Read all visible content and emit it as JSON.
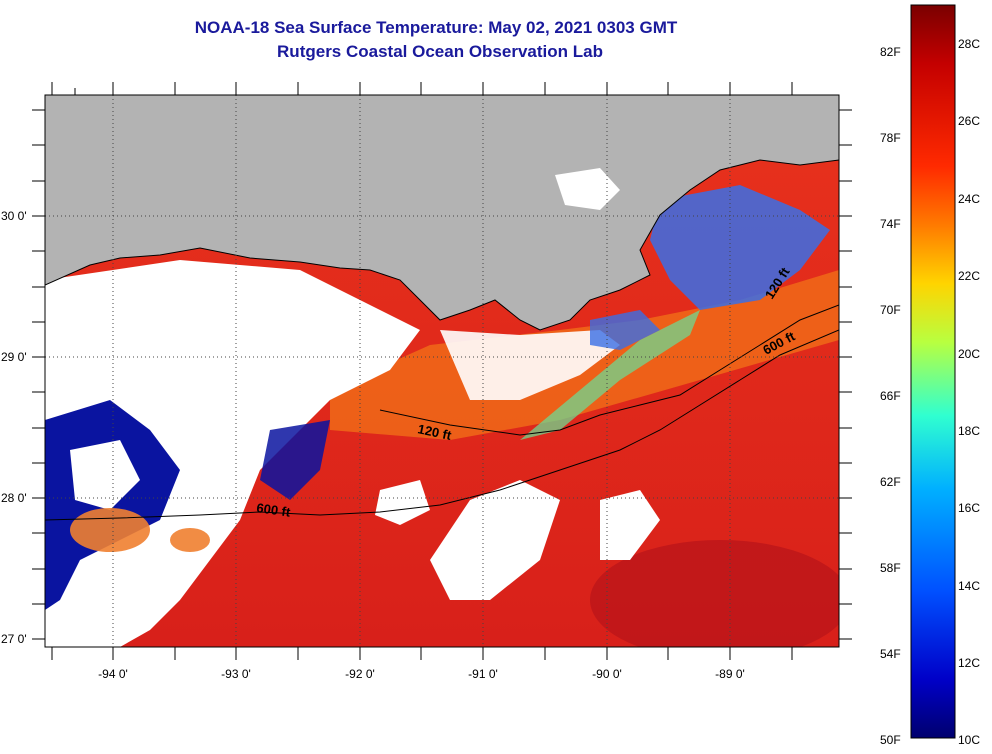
{
  "title": "NOAA-18 Sea Surface Temperature:  May 02, 2021 0303 GMT",
  "subtitle": "Rutgers Coastal Ocean Observation Lab",
  "map": {
    "lon_labels": [
      "-94 0'",
      "-93 0'",
      "-92 0'",
      "-91 0'",
      "-90 0'",
      "-89 0'"
    ],
    "lat_labels": [
      "30 0'",
      "29 0'",
      "28 0'",
      "27 0'"
    ],
    "contour_labels": [
      "120 ft",
      "600 ft",
      "120 ft",
      "600 ft"
    ],
    "colors": {
      "land": "#b3b3b3",
      "cloud": "#ffffff",
      "warm_water": "#e8321c",
      "cool_water": "#2a6fe0"
    }
  },
  "colorbar": {
    "fahrenheit_labels": [
      "82F",
      "78F",
      "74F",
      "70F",
      "66F",
      "62F",
      "58F",
      "54F",
      "50F"
    ],
    "celsius_labels": [
      "28C",
      "26C",
      "24C",
      "22C",
      "20C",
      "18C",
      "16C",
      "14C",
      "12C",
      "10C"
    ],
    "gradient_colors": [
      "#7a0000",
      "#c40000",
      "#ff2a00",
      "#ff7a00",
      "#ffd400",
      "#b8ff40",
      "#30ffd0",
      "#00b0ff",
      "#0050ff",
      "#0000c8",
      "#00006e"
    ]
  }
}
